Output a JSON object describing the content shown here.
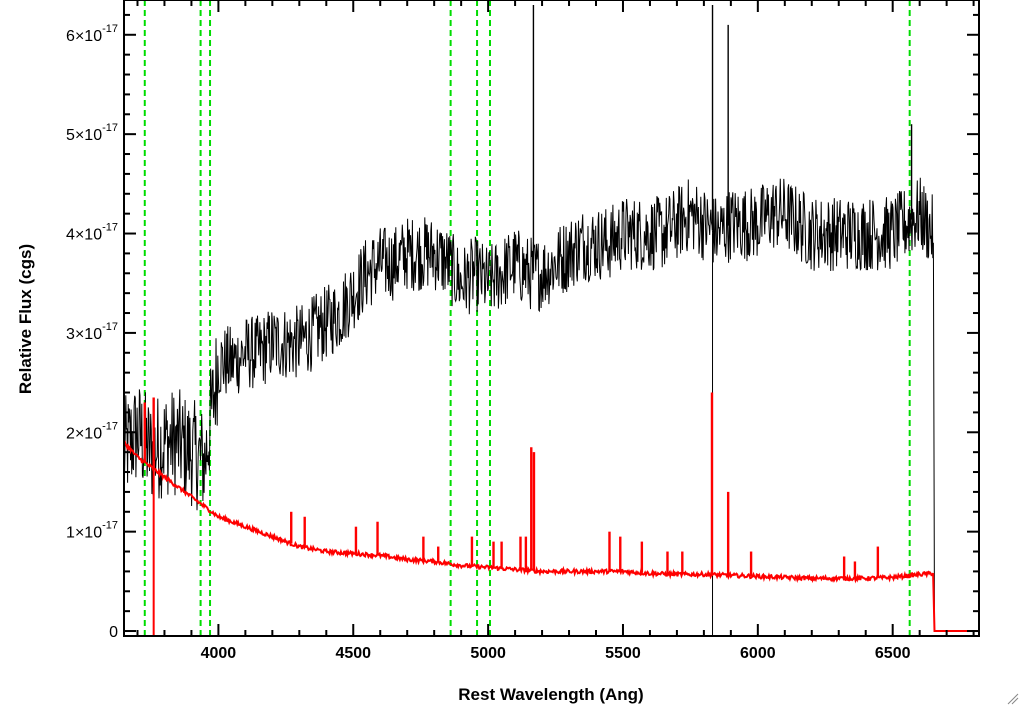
{
  "chart_data": {
    "type": "line",
    "title": "",
    "xlabel": "Rest Wavelength (Ang)",
    "ylabel": "Relative Flux (cgs)",
    "xlim": [
      3650,
      6820
    ],
    "ylim": [
      -0.05,
      6.35
    ],
    "y_multiplier_exponent": "-17",
    "x_ticks": [
      {
        "value": 4000,
        "label": "4000"
      },
      {
        "value": 4500,
        "label": "4500"
      },
      {
        "value": 5000,
        "label": "5000"
      },
      {
        "value": 5500,
        "label": "5500"
      },
      {
        "value": 6000,
        "label": "6000"
      },
      {
        "value": 6500,
        "label": "6500"
      }
    ],
    "y_ticks": [
      {
        "value": 0,
        "mantissa": "0",
        "exp": ""
      },
      {
        "value": 1,
        "mantissa": "1×10",
        "exp": "-17"
      },
      {
        "value": 2,
        "mantissa": "2×10",
        "exp": "-17"
      },
      {
        "value": 3,
        "mantissa": "3×10",
        "exp": "-17"
      },
      {
        "value": 4,
        "mantissa": "4×10",
        "exp": "-17"
      },
      {
        "value": 5,
        "mantissa": "5×10",
        "exp": "-17"
      },
      {
        "value": 6,
        "mantissa": "6×10",
        "exp": "-17"
      }
    ],
    "vertical_lines": {
      "color": "#00dd00",
      "style": "dashed",
      "x": [
        3727,
        3934,
        3969,
        4861,
        4959,
        5007,
        6563
      ]
    },
    "series": [
      {
        "color": "#000000",
        "description": "observed spectrum",
        "x": [
          3650,
          3700,
          3750,
          3800,
          3850,
          3900,
          3950,
          4000,
          4050,
          4100,
          4150,
          4200,
          4250,
          4300,
          4350,
          4400,
          4450,
          4500,
          4550,
          4600,
          4650,
          4700,
          4750,
          4800,
          4850,
          4900,
          4950,
          5000,
          5050,
          5100,
          5150,
          5200,
          5250,
          5300,
          5350,
          5400,
          5450,
          5500,
          5550,
          5600,
          5650,
          5700,
          5750,
          5800,
          5850,
          5900,
          5950,
          6000,
          6050,
          6100,
          6150,
          6200,
          6250,
          6300,
          6350,
          6400,
          6450,
          6500,
          6550,
          6600,
          6650,
          6660,
          6820
        ],
        "y": [
          1.8,
          2.0,
          1.8,
          1.9,
          1.9,
          1.8,
          1.7,
          2.7,
          2.7,
          2.8,
          2.8,
          2.9,
          2.9,
          2.9,
          3.0,
          3.1,
          3.2,
          3.4,
          3.6,
          3.7,
          3.7,
          3.8,
          3.8,
          3.8,
          3.7,
          3.5,
          3.6,
          3.5,
          3.6,
          3.7,
          3.6,
          3.6,
          3.7,
          3.8,
          3.9,
          3.9,
          3.9,
          4.0,
          4.0,
          4.0,
          4.0,
          4.1,
          4.2,
          4.1,
          4.0,
          4.1,
          4.1,
          4.1,
          4.2,
          4.2,
          4.1,
          4.0,
          4.0,
          4.0,
          4.0,
          4.0,
          4.0,
          4.0,
          4.1,
          4.2,
          4.0,
          0.0,
          0.0
        ],
        "spikes": [
          {
            "x": 5168,
            "y": 6.3
          },
          {
            "x": 5832,
            "y": 6.3
          },
          {
            "x": 5890,
            "y": 6.1
          },
          {
            "x": 6570,
            "y": 5.1
          }
        ]
      },
      {
        "color": "#ff0000",
        "description": "model spectrum",
        "x": [
          3650,
          3700,
          3750,
          3800,
          3850,
          3900,
          3950,
          4000,
          4050,
          4100,
          4150,
          4200,
          4300,
          4400,
          4500,
          4600,
          4700,
          4800,
          4900,
          5000,
          5100,
          5200,
          5300,
          5400,
          5500,
          5600,
          5700,
          5800,
          5900,
          6000,
          6100,
          6200,
          6300,
          6400,
          6500,
          6600,
          6650,
          6655,
          6820
        ],
        "y": [
          1.9,
          1.75,
          1.65,
          1.55,
          1.45,
          1.35,
          1.25,
          1.15,
          1.1,
          1.05,
          1.0,
          0.95,
          0.85,
          0.8,
          0.78,
          0.76,
          0.72,
          0.7,
          0.66,
          0.64,
          0.62,
          0.6,
          0.6,
          0.6,
          0.6,
          0.58,
          0.57,
          0.57,
          0.56,
          0.55,
          0.54,
          0.53,
          0.53,
          0.53,
          0.54,
          0.57,
          0.58,
          0.0,
          0.0
        ],
        "emission_lines": [
          {
            "x": 3727,
            "y": 2.3
          },
          {
            "x": 3760,
            "y": 2.35
          },
          {
            "x": 4270,
            "y": 1.2
          },
          {
            "x": 4320,
            "y": 1.15
          },
          {
            "x": 4510,
            "y": 1.05
          },
          {
            "x": 4590,
            "y": 1.1
          },
          {
            "x": 4760,
            "y": 0.95
          },
          {
            "x": 4815,
            "y": 0.85
          },
          {
            "x": 4940,
            "y": 0.95
          },
          {
            "x": 5020,
            "y": 0.9
          },
          {
            "x": 5050,
            "y": 0.9
          },
          {
            "x": 5120,
            "y": 0.95
          },
          {
            "x": 5140,
            "y": 0.95
          },
          {
            "x": 5160,
            "y": 1.85
          },
          {
            "x": 5170,
            "y": 1.8
          },
          {
            "x": 5450,
            "y": 1.0
          },
          {
            "x": 5490,
            "y": 0.95
          },
          {
            "x": 5570,
            "y": 0.9
          },
          {
            "x": 5665,
            "y": 0.8
          },
          {
            "x": 5720,
            "y": 0.8
          },
          {
            "x": 5830,
            "y": 2.4
          },
          {
            "x": 5890,
            "y": 1.4
          },
          {
            "x": 5975,
            "y": 0.8
          },
          {
            "x": 6320,
            "y": 0.75
          },
          {
            "x": 6360,
            "y": 0.7
          },
          {
            "x": 6445,
            "y": 0.85
          }
        ]
      }
    ]
  }
}
